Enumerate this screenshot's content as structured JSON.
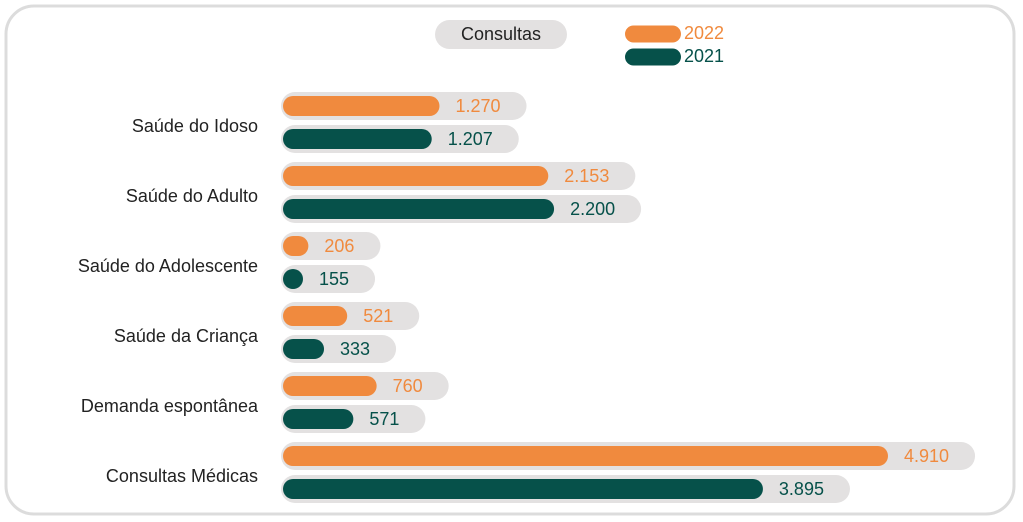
{
  "chart_data": {
    "type": "bar",
    "orientation": "horizontal",
    "title": "Consultas",
    "categories": [
      "Saúde do Idoso",
      "Saúde do Adulto",
      "Saúde do Adolescente",
      "Saúde da Criança",
      "Demanda espontânea",
      "Consultas Médicas"
    ],
    "series": [
      {
        "name": "2022",
        "color": "#f08a3e",
        "values": [
          1270,
          2153,
          206,
          521,
          760,
          4910
        ],
        "value_labels": [
          "1.270",
          "2.153",
          "206",
          "521",
          "760",
          "4.910"
        ]
      },
      {
        "name": "2021",
        "color": "#06514a",
        "values": [
          1207,
          2200,
          155,
          333,
          571,
          3895
        ],
        "value_labels": [
          "1.207",
          "2.200",
          "155",
          "333",
          "571",
          "3.895"
        ]
      }
    ]
  }
}
